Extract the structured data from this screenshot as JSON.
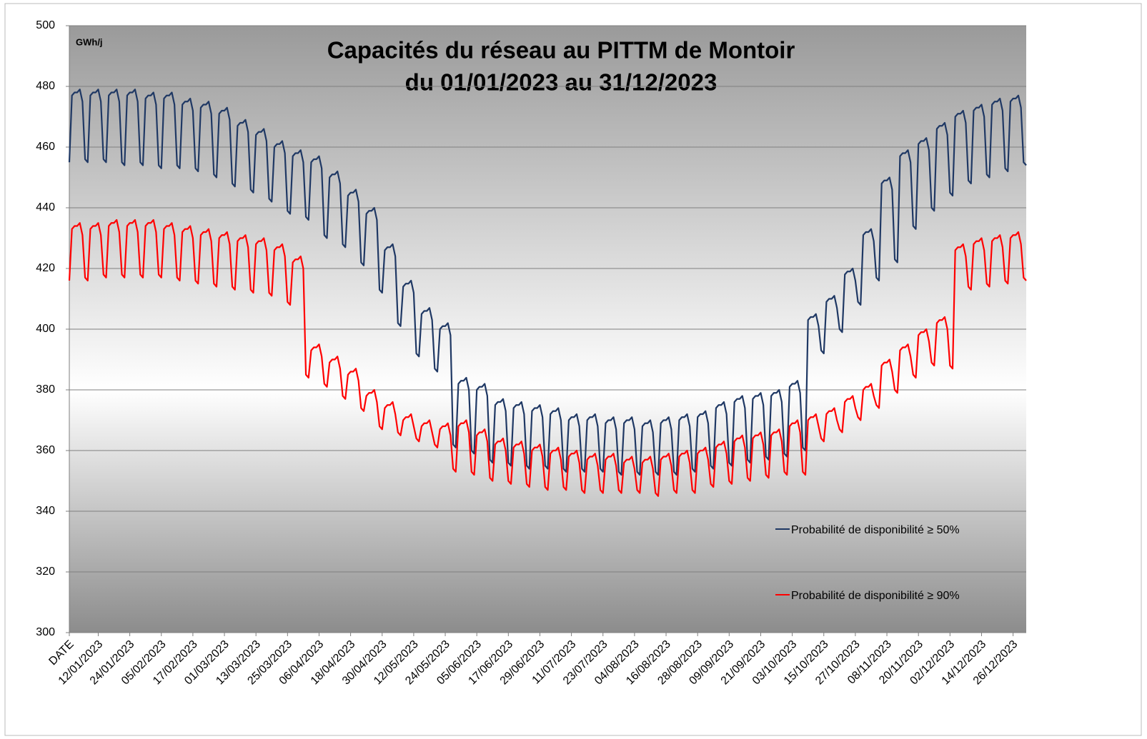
{
  "chart_data": {
    "type": "line",
    "title_lines": [
      "Capacités du réseau au PITTM de Montoir",
      "du 01/01/2023 au 31/12/2023"
    ],
    "unit_label": "GWh/j",
    "ylim": [
      300,
      500
    ],
    "yticks": [
      300,
      320,
      340,
      360,
      380,
      400,
      420,
      440,
      460,
      480,
      500
    ],
    "grid": true,
    "legend": "lower right",
    "categories": [
      "DATE",
      null,
      null,
      null,
      null,
      null,
      null,
      null,
      null,
      null,
      null,
      "12/01/2023",
      null,
      null,
      null,
      null,
      null,
      null,
      null,
      null,
      null,
      null,
      null,
      "24/01/2023",
      null,
      null,
      null,
      null,
      null,
      null,
      null,
      null,
      null,
      null,
      null,
      "05/02/2023",
      null,
      null,
      null,
      null,
      null,
      null,
      null,
      null,
      null,
      null,
      null,
      "17/02/2023",
      null,
      null,
      null,
      null,
      null,
      null,
      null,
      null,
      null,
      null,
      null,
      "01/03/2023",
      null,
      null,
      null,
      null,
      null,
      null,
      null,
      null,
      null,
      null,
      null,
      "13/03/2023",
      null,
      null,
      null,
      null,
      null,
      null,
      null,
      null,
      null,
      null,
      null,
      "25/03/2023",
      null,
      null,
      null,
      null,
      null,
      null,
      null,
      null,
      null,
      null,
      null,
      "06/04/2023",
      null,
      null,
      null,
      null,
      null,
      null,
      null,
      null,
      null,
      null,
      null,
      "18/04/2023",
      null,
      null,
      null,
      null,
      null,
      null,
      null,
      null,
      null,
      null,
      null,
      "30/04/2023",
      null,
      null,
      null,
      null,
      null,
      null,
      null,
      null,
      null,
      null,
      null,
      "12/05/2023",
      null,
      null,
      null,
      null,
      null,
      null,
      null,
      null,
      null,
      null,
      null,
      "24/05/2023",
      null,
      null,
      null,
      null,
      null,
      null,
      null,
      null,
      null,
      null,
      null,
      "05/06/2023",
      null,
      null,
      null,
      null,
      null,
      null,
      null,
      null,
      null,
      null,
      null,
      "17/06/2023",
      null,
      null,
      null,
      null,
      null,
      null,
      null,
      null,
      null,
      null,
      null,
      "29/06/2023",
      null,
      null,
      null,
      null,
      null,
      null,
      null,
      null,
      null,
      null,
      null,
      "11/07/2023",
      null,
      null,
      null,
      null,
      null,
      null,
      null,
      null,
      null,
      null,
      null,
      "23/07/2023",
      null,
      null,
      null,
      null,
      null,
      null,
      null,
      null,
      null,
      null,
      null,
      "04/08/2023",
      null,
      null,
      null,
      null,
      null,
      null,
      null,
      null,
      null,
      null,
      null,
      "16/08/2023",
      null,
      null,
      null,
      null,
      null,
      null,
      null,
      null,
      null,
      null,
      null,
      "28/08/2023",
      null,
      null,
      null,
      null,
      null,
      null,
      null,
      null,
      null,
      null,
      null,
      "09/09/2023",
      null,
      null,
      null,
      null,
      null,
      null,
      null,
      null,
      null,
      null,
      null,
      "21/09/2023",
      null,
      null,
      null,
      null,
      null,
      null,
      null,
      null,
      null,
      null,
      null,
      "03/10/2023",
      null,
      null,
      null,
      null,
      null,
      null,
      null,
      null,
      null,
      null,
      null,
      "15/10/2023",
      null,
      null,
      null,
      null,
      null,
      null,
      null,
      null,
      null,
      null,
      null,
      "27/10/2023",
      null,
      null,
      null,
      null,
      null,
      null,
      null,
      null,
      null,
      null,
      null,
      "08/11/2023",
      null,
      null,
      null,
      null,
      null,
      null,
      null,
      null,
      null,
      null,
      null,
      "20/11/2023",
      null,
      null,
      null,
      null,
      null,
      null,
      null,
      null,
      null,
      null,
      null,
      "02/12/2023",
      null,
      null,
      null,
      null,
      null,
      null,
      null,
      null,
      null,
      null,
      null,
      "14/12/2023",
      null,
      null,
      null,
      null,
      null,
      null,
      null,
      null,
      null,
      null,
      null,
      "26/12/2023",
      null,
      null,
      null,
      null,
      null
    ],
    "series": [
      {
        "name": "Probabilité de disponibilité ≥ 50%",
        "color": "#1f3864",
        "values": [
          455,
          477,
          478,
          478,
          479,
          475,
          456,
          455,
          477,
          478,
          478,
          479,
          475,
          456,
          455,
          477,
          478,
          478,
          479,
          475,
          455,
          454,
          477,
          478,
          478,
          479,
          475,
          455,
          454,
          476,
          477,
          477,
          478,
          474,
          454,
          453,
          476,
          477,
          477,
          478,
          474,
          454,
          453,
          474,
          475,
          475,
          476,
          472,
          453,
          452,
          473,
          474,
          474,
          475,
          471,
          451,
          450,
          471,
          472,
          472,
          473,
          469,
          448,
          447,
          467,
          468,
          468,
          469,
          465,
          446,
          445,
          464,
          465,
          465,
          466,
          462,
          443,
          442,
          460,
          461,
          461,
          462,
          458,
          439,
          438,
          457,
          458,
          458,
          459,
          455,
          437,
          436,
          455,
          456,
          456,
          457,
          453,
          431,
          430,
          450,
          451,
          451,
          452,
          448,
          428,
          427,
          444,
          445,
          445,
          446,
          442,
          422,
          421,
          438,
          439,
          439,
          440,
          436,
          413,
          412,
          426,
          427,
          427,
          428,
          424,
          402,
          401,
          414,
          415,
          415,
          416,
          412,
          392,
          391,
          405,
          406,
          406,
          407,
          403,
          387,
          386,
          400,
          401,
          401,
          402,
          398,
          362,
          361,
          382,
          383,
          383,
          384,
          380,
          360,
          359,
          380,
          381,
          381,
          382,
          378,
          357,
          356,
          375,
          376,
          376,
          377,
          373,
          356,
          355,
          374,
          375,
          375,
          376,
          372,
          355,
          354,
          373,
          374,
          374,
          375,
          371,
          355,
          354,
          372,
          373,
          373,
          374,
          370,
          354,
          353,
          370,
          371,
          371,
          372,
          368,
          354,
          353,
          370,
          371,
          371,
          372,
          368,
          354,
          353,
          369,
          370,
          370,
          371,
          367,
          353,
          352,
          369,
          370,
          370,
          371,
          367,
          353,
          352,
          368,
          369,
          369,
          370,
          366,
          353,
          352,
          369,
          370,
          370,
          371,
          367,
          353,
          352,
          370,
          371,
          371,
          372,
          368,
          354,
          353,
          371,
          372,
          372,
          373,
          369,
          355,
          354,
          374,
          375,
          375,
          376,
          372,
          356,
          355,
          376,
          377,
          377,
          378,
          374,
          357,
          356,
          377,
          378,
          378,
          379,
          375,
          358,
          357,
          378,
          379,
          379,
          380,
          376,
          359,
          358,
          381,
          382,
          382,
          383,
          379,
          361,
          360,
          403,
          404,
          404,
          405,
          401,
          393,
          392,
          409,
          410,
          410,
          411,
          407,
          400,
          399,
          418,
          419,
          419,
          420,
          416,
          409,
          408,
          431,
          432,
          432,
          433,
          429,
          417,
          416,
          448,
          449,
          449,
          450,
          446,
          423,
          422,
          457,
          458,
          458,
          459,
          455,
          434,
          433,
          461,
          462,
          462,
          463,
          459,
          440,
          439,
          466,
          467,
          467,
          468,
          464,
          445,
          444,
          470,
          471,
          471,
          472,
          468,
          449,
          448,
          472,
          473,
          473,
          474,
          470,
          451,
          450,
          474,
          475,
          475,
          476,
          472,
          453,
          452,
          475,
          476,
          476,
          477,
          473,
          455,
          454
        ]
      },
      {
        "name": "Probabilité de disponibilité ≥ 90%",
        "color": "#ff0000",
        "values": [
          416,
          433,
          434,
          434,
          435,
          431,
          417,
          416,
          433,
          434,
          434,
          435,
          431,
          418,
          417,
          434,
          435,
          435,
          436,
          432,
          418,
          417,
          434,
          435,
          435,
          436,
          432,
          418,
          417,
          434,
          435,
          435,
          436,
          432,
          418,
          417,
          433,
          434,
          434,
          435,
          431,
          417,
          416,
          432,
          433,
          433,
          434,
          430,
          416,
          415,
          431,
          432,
          432,
          433,
          429,
          415,
          414,
          430,
          431,
          431,
          432,
          428,
          414,
          413,
          429,
          430,
          430,
          431,
          427,
          413,
          412,
          428,
          429,
          429,
          430,
          426,
          412,
          411,
          426,
          427,
          427,
          428,
          424,
          409,
          408,
          422,
          423,
          423,
          424,
          420,
          385,
          384,
          393,
          394,
          394,
          395,
          391,
          382,
          381,
          389,
          390,
          390,
          391,
          387,
          378,
          377,
          385,
          386,
          386,
          387,
          383,
          374,
          373,
          378,
          379,
          379,
          380,
          376,
          368,
          367,
          374,
          375,
          375,
          376,
          372,
          366,
          365,
          370,
          371,
          371,
          372,
          368,
          364,
          363,
          368,
          369,
          369,
          370,
          366,
          362,
          361,
          367,
          368,
          368,
          369,
          365,
          354,
          353,
          368,
          369,
          369,
          370,
          366,
          353,
          352,
          365,
          366,
          366,
          367,
          363,
          351,
          350,
          362,
          363,
          363,
          364,
          360,
          350,
          349,
          361,
          362,
          362,
          363,
          359,
          349,
          348,
          360,
          361,
          361,
          362,
          358,
          348,
          347,
          359,
          360,
          360,
          361,
          357,
          348,
          347,
          358,
          359,
          359,
          360,
          356,
          347,
          346,
          357,
          358,
          358,
          359,
          355,
          347,
          346,
          357,
          358,
          358,
          359,
          355,
          347,
          346,
          356,
          357,
          357,
          358,
          354,
          347,
          346,
          356,
          357,
          357,
          358,
          354,
          346,
          345,
          357,
          358,
          358,
          359,
          355,
          347,
          346,
          358,
          359,
          359,
          360,
          356,
          347,
          346,
          359,
          360,
          360,
          361,
          357,
          349,
          348,
          361,
          362,
          362,
          363,
          359,
          350,
          349,
          363,
          364,
          364,
          365,
          361,
          351,
          350,
          364,
          365,
          365,
          366,
          362,
          352,
          351,
          365,
          366,
          366,
          367,
          363,
          353,
          352,
          368,
          369,
          369,
          370,
          366,
          353,
          352,
          370,
          371,
          371,
          372,
          368,
          364,
          363,
          372,
          373,
          373,
          374,
          370,
          367,
          366,
          376,
          377,
          377,
          378,
          374,
          371,
          370,
          380,
          381,
          381,
          382,
          378,
          375,
          374,
          388,
          389,
          389,
          390,
          386,
          380,
          379,
          393,
          394,
          394,
          395,
          391,
          385,
          384,
          398,
          399,
          399,
          400,
          396,
          389,
          388,
          402,
          403,
          403,
          404,
          400,
          388,
          387,
          426,
          427,
          427,
          428,
          424,
          414,
          413,
          428,
          429,
          429,
          430,
          426,
          415,
          414,
          429,
          430,
          430,
          431,
          427,
          416,
          415,
          430,
          431,
          431,
          432,
          428,
          417,
          416
        ]
      }
    ]
  }
}
